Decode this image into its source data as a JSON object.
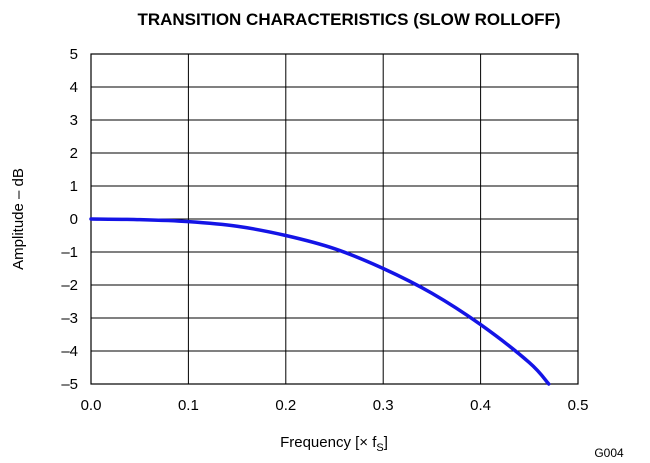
{
  "chart_data": {
    "type": "line",
    "title": "TRANSITION CHARACTERISTICS (SLOW ROLLOFF)",
    "xlabel": "Frequency [× f",
    "xlabel_subscript": "S",
    "xlabel_suffix": "]",
    "ylabel": "Amplitude – dB",
    "xlim": [
      0.0,
      0.5
    ],
    "ylim": [
      -5,
      5
    ],
    "x_ticks": [
      "0.0",
      "0.1",
      "0.2",
      "0.3",
      "0.4",
      "0.5"
    ],
    "y_ticks": [
      "5",
      "4",
      "3",
      "2",
      "1",
      "0",
      "–1",
      "–2",
      "–3",
      "–4",
      "–5"
    ],
    "grid": true,
    "legend": "none",
    "series": [
      {
        "color": "#1414e6",
        "x": [
          0.0,
          0.05,
          0.1,
          0.15,
          0.2,
          0.25,
          0.3,
          0.35,
          0.4,
          0.45,
          0.47
        ],
        "y": [
          0.0,
          -0.02,
          -0.08,
          -0.22,
          -0.5,
          -0.9,
          -1.5,
          -2.25,
          -3.2,
          -4.35,
          -5.0
        ]
      }
    ],
    "annotation": "G004"
  }
}
